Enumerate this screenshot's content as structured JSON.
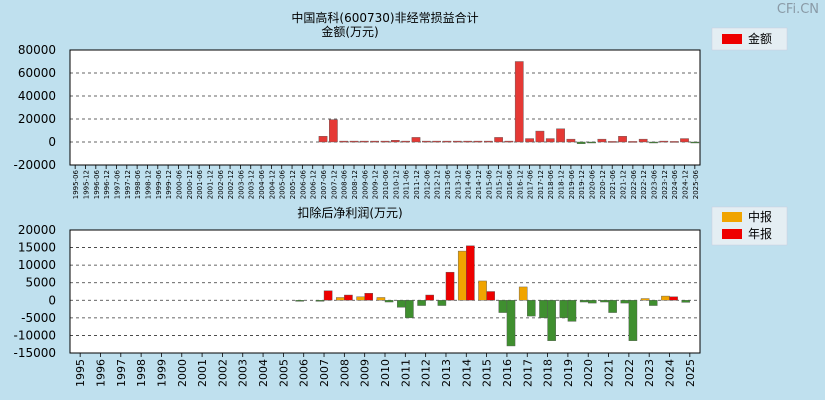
{
  "watermark": "CFi.CN",
  "colors": {
    "positive": "#e53935",
    "negative": "#3f8f2f",
    "interim": "#f0a400",
    "annual": "#ee0000"
  },
  "chart_data": [
    {
      "type": "bar",
      "title": "中国高科(600730)非经常损益合计",
      "ylabel": "金额(万元)",
      "legend": [
        "金额"
      ],
      "legend_position": "top-right",
      "grid": true,
      "ylim": [
        -20000,
        80000
      ],
      "yticks": [
        -20000,
        0,
        20000,
        40000,
        60000,
        80000
      ],
      "categories": [
        "1995-06",
        "1995-12",
        "1996-06",
        "1996-12",
        "1997-06",
        "1997-12",
        "1998-06",
        "1998-12",
        "1999-06",
        "1999-12",
        "2000-06",
        "2000-12",
        "2001-06",
        "2001-12",
        "2002-06",
        "2002-12",
        "2003-06",
        "2003-12",
        "2004-06",
        "2004-12",
        "2005-06",
        "2005-12",
        "2006-06",
        "2006-12",
        "2007-06",
        "2007-12",
        "2008-06",
        "2008-12",
        "2009-06",
        "2009-12",
        "2010-06",
        "2010-12",
        "2011-06",
        "2011-12",
        "2012-06",
        "2012-12",
        "2013-06",
        "2013-12",
        "2014-06",
        "2014-12",
        "2015-06",
        "2015-12",
        "2016-06",
        "2016-12",
        "2017-06",
        "2017-12",
        "2018-06",
        "2018-12",
        "2019-06",
        "2019-12",
        "2020-06",
        "2020-12",
        "2021-06",
        "2021-12",
        "2022-06",
        "2022-12",
        "2023-06",
        "2023-12",
        "2024-06",
        "2024-12",
        "2025-06"
      ],
      "values": [
        null,
        null,
        null,
        null,
        null,
        null,
        null,
        null,
        null,
        null,
        null,
        null,
        null,
        null,
        null,
        null,
        null,
        null,
        null,
        null,
        null,
        null,
        null,
        null,
        5000,
        19500,
        800,
        800,
        800,
        800,
        800,
        1500,
        800,
        4000,
        800,
        800,
        800,
        800,
        800,
        800,
        800,
        4000,
        800,
        70000,
        3000,
        9500,
        3000,
        11500,
        2500,
        -1500,
        -800,
        2500,
        500,
        5000,
        500,
        2500,
        -500,
        800,
        500,
        3000,
        -800
      ]
    },
    {
      "type": "bar",
      "title": "扣除后净利润(万元)",
      "legend": [
        "中报",
        "年报"
      ],
      "legend_position": "top-right",
      "grid": true,
      "ylim": [
        -15000,
        20000
      ],
      "yticks": [
        -15000,
        -10000,
        -5000,
        0,
        5000,
        10000,
        15000,
        20000
      ],
      "categories": [
        "1995",
        "1996",
        "1997",
        "1998",
        "1999",
        "2000",
        "2001",
        "2002",
        "2003",
        "2004",
        "2005",
        "2006",
        "2007",
        "2008",
        "2009",
        "2010",
        "2011",
        "2012",
        "2013",
        "2014",
        "2015",
        "2016",
        "2017",
        "2018",
        "2019",
        "2020",
        "2021",
        "2022",
        "2023",
        "2024",
        "2025"
      ],
      "series": [
        {
          "name": "中报",
          "values": [
            null,
            null,
            null,
            null,
            null,
            null,
            null,
            null,
            null,
            null,
            null,
            -300,
            -300,
            800,
            1000,
            800,
            -2000,
            -1500,
            -1500,
            14000,
            5500,
            -3500,
            3800,
            -5000,
            -5000,
            -500,
            -500,
            -800,
            500,
            1200,
            -600
          ]
        },
        {
          "name": "年报",
          "values": [
            null,
            null,
            null,
            null,
            null,
            null,
            null,
            null,
            null,
            null,
            null,
            null,
            2700,
            1500,
            2000,
            -500,
            -5000,
            1500,
            8000,
            15500,
            2500,
            -13000,
            -4500,
            -11500,
            -6000,
            -800,
            -3500,
            -11500,
            -1500,
            1000,
            null
          ]
        }
      ]
    }
  ]
}
